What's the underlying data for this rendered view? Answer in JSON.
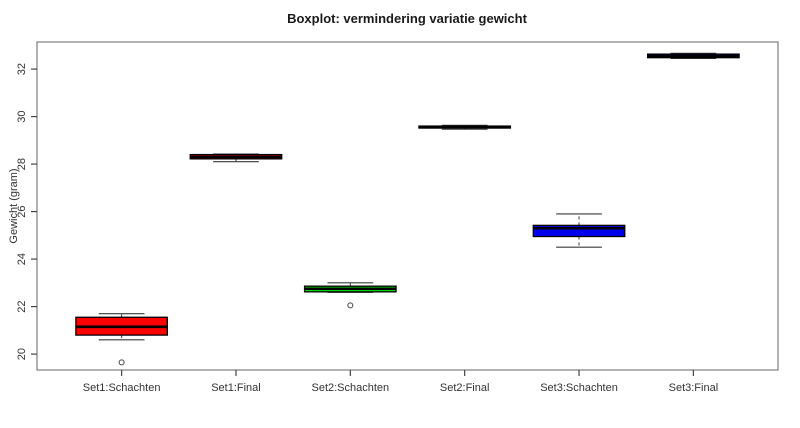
{
  "chart_data": {
    "type": "boxplot",
    "title": "Boxplot: vermindering variatie gewicht",
    "xlabel": "",
    "ylabel": "Gewicht (gram)",
    "categories": [
      "Set1:Schachten",
      "Set1:Final",
      "Set2:Schachten",
      "Set2:Final",
      "Set3:Schachten",
      "Set3:Final"
    ],
    "y_ticks": [
      20,
      22,
      24,
      26,
      28,
      30,
      32
    ],
    "ylim": [
      19.33,
      33.14
    ],
    "xlim": [
      0.26,
      6.74
    ],
    "grid": false,
    "legend": "none",
    "box_width": 0.8,
    "staple_width": 0.4,
    "series": [
      {
        "name": "Set1:Schachten",
        "color": "#ff0000",
        "whislo": 20.6,
        "q1": 20.8,
        "med": 21.15,
        "q3": 21.55,
        "whishi": 21.7,
        "outliers": [
          19.65
        ]
      },
      {
        "name": "Set1:Final",
        "color": "#ff0000",
        "whislo": 28.1,
        "q1": 28.22,
        "med": 28.3,
        "q3": 28.4,
        "whishi": 28.42,
        "outliers": []
      },
      {
        "name": "Set2:Schachten",
        "color": "#00ee00",
        "whislo": 22.6,
        "q1": 22.62,
        "med": 22.75,
        "q3": 22.86,
        "whishi": 23.0,
        "outliers": [
          22.05
        ]
      },
      {
        "name": "Set2:Final",
        "color": "#00ee00",
        "whislo": 29.47,
        "q1": 29.52,
        "med": 29.55,
        "q3": 29.6,
        "whishi": 29.63,
        "outliers": []
      },
      {
        "name": "Set3:Schachten",
        "color": "#0000ee",
        "whislo": 24.5,
        "q1": 24.95,
        "med": 25.3,
        "q3": 25.42,
        "whishi": 25.9,
        "outliers": []
      },
      {
        "name": "Set3:Final",
        "color": "#0000ee",
        "whislo": 32.45,
        "q1": 32.48,
        "med": 32.55,
        "q3": 32.63,
        "whishi": 32.66,
        "outliers": []
      }
    ],
    "colors": {
      "box_border": "#000000",
      "median": "#000000",
      "whisker": "#3a3a3a",
      "axis_frame": "#888888",
      "tick": "#444444",
      "text": "#333333",
      "outlier_stroke": "#444444",
      "background": "#ffffff"
    }
  }
}
